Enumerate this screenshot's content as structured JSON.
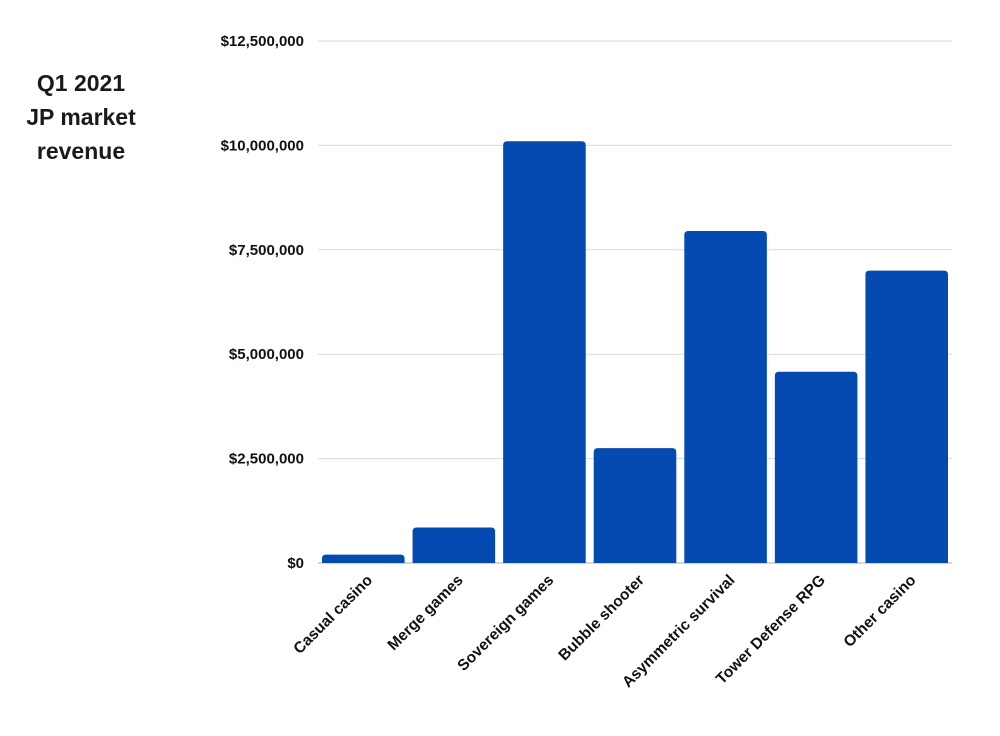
{
  "chart_data": {
    "type": "bar",
    "title_lines": [
      "Q1 2021",
      "JP market",
      "revenue"
    ],
    "categories": [
      "Casual casino",
      "Merge games",
      "Sovereign games",
      "Bubble shooter",
      "Asymmetric survival",
      "Tower Defense RPG",
      "Other casino"
    ],
    "values": [
      200000,
      850000,
      10100000,
      2750000,
      7950000,
      4580000,
      7000000
    ],
    "ylim": [
      0,
      12500000
    ],
    "yticks": [
      {
        "value": 0,
        "label": "$0"
      },
      {
        "value": 2500000,
        "label": "$2,500,000"
      },
      {
        "value": 5000000,
        "label": "$5,000,000"
      },
      {
        "value": 7500000,
        "label": "$7,500,000"
      },
      {
        "value": 10000000,
        "label": "$10,000,000"
      },
      {
        "value": 12500000,
        "label": "$12,500,000"
      }
    ],
    "grid": true,
    "legend": "none",
    "bar_color": "#054ab0"
  }
}
